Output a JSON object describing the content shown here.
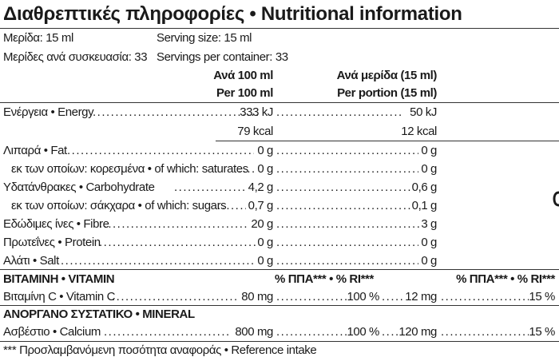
{
  "title": "Διαθρεπτικές πληροφορίες • Nutritional information",
  "serving": {
    "size_gr": "Μερίδα: 15 ml",
    "size_en": "Serving size: 15 ml",
    "per_container_gr": "Μερίδες ανά συσκευασία: 33",
    "per_container_en": "Servings per container: 33"
  },
  "columns": {
    "per100_gr": "Ανά 100 ml",
    "per100_en": "Per 100 ml",
    "perportion_gr": "Ανά μερίδα (15 ml)",
    "perportion_en": "Per portion (15 ml)"
  },
  "nutrients": [
    {
      "label": "Ενέργεια • Energy",
      "per100": "333 kJ",
      "perportion": "50 kJ"
    },
    {
      "label": "",
      "per100": "79 kcal",
      "perportion": "12 kcal"
    },
    {
      "label": "Λιπαρά • Fat",
      "per100": "0 g",
      "perportion": "0 g"
    },
    {
      "label": "εκ των οποίων: κορεσμένα • of which: saturates",
      "per100": "0 g",
      "perportion": "0 g"
    },
    {
      "label": "Υδατάνθρακες • Carbohydrate",
      "per100": "4,2 g",
      "perportion": "0,6 g"
    },
    {
      "label": "εκ των οποίων: σάκχαρα • of which: sugars",
      "per100": "0,7 g",
      "perportion": "0,1 g"
    },
    {
      "label": "Εδώδιμες ίνες • Fibre",
      "per100": "20 g",
      "perportion": "3 g"
    },
    {
      "label": "Πρωτεΐνες • Protein",
      "per100": "0 g",
      "perportion": "0 g"
    },
    {
      "label": "Αλάτι • Salt",
      "per100": "0 g",
      "perportion": "0 g"
    }
  ],
  "vitamin": {
    "heading": "ΒΙΤΑΜΙΝΗ • VITAMIN",
    "ri_header_100": "% ΠΠΑ*** • % RI***",
    "ri_header_portion": "% ΠΠΑ*** • % RI***",
    "row": {
      "label": "Βιταμίνη C • Vitamin C",
      "per100": "80 mg",
      "ri100": "100 %",
      "perportion": "12 mg",
      "riportion": "15 %"
    }
  },
  "mineral": {
    "heading": "ΑΝΟΡΓΑΝΟ ΣΥΣΤΑΤΙΚΟ • MINERAL",
    "row": {
      "label": "Ασβέστιο • Calcium",
      "per100": "800 mg",
      "ri100": "100 %",
      "perportion": "120 mg",
      "riportion": "15 %"
    }
  },
  "footnote": "*** Προσλαμβανόμενη ποσότητα αναφοράς • Reference intake"
}
